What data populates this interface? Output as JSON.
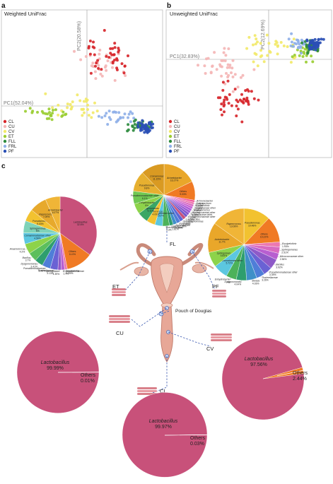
{
  "panels": {
    "a": {
      "letter": "a",
      "title": "Weighted UniFrac",
      "pc1": "PC1(52.04%)",
      "pc2": "PC2(20.58%)"
    },
    "b": {
      "letter": "b",
      "title": "Unweighted UniFrac",
      "pc1": "PC1(32.83%)",
      "pc2": "PC2(12.69%)"
    },
    "c": {
      "letter": "c"
    }
  },
  "legend": [
    {
      "label": "CL",
      "color": "#d7262b"
    },
    {
      "label": "CU",
      "color": "#f4b6b6"
    },
    {
      "label": "CV",
      "color": "#f2e96a"
    },
    {
      "label": "ET",
      "color": "#9acd32"
    },
    {
      "label": "FLL",
      "color": "#2e8b3e"
    },
    {
      "label": "FRL",
      "color": "#8fb0e8"
    },
    {
      "label": "PF",
      "color": "#2a4fb5"
    }
  ],
  "sites": {
    "et": "ET",
    "fl": "FL",
    "pf": "PF",
    "cu": "CU",
    "cv": "CV",
    "cl": "CL",
    "pouch": "Pouch of Douglas"
  },
  "chart_data": [
    {
      "id": "pcoa_weighted",
      "type": "scatter",
      "title": "Weighted UniFrac",
      "xlabel": "PC1(52.04%)",
      "ylabel": "PC2(20.58%)",
      "series_note": "groups CL, CU, CV, ET, FLL, FRL, PF"
    },
    {
      "id": "pcoa_unweighted",
      "type": "scatter",
      "title": "Unweighted UniFrac",
      "xlabel": "PC1(32.83%)",
      "ylabel": "PC2(12.69%)",
      "series_note": "groups CL, CU, CV, ET, FLL, FRL, PF"
    },
    {
      "id": "pie_et",
      "type": "pie",
      "site": "ET",
      "slices": [
        {
          "label": "Lactobacillus",
          "pct_text": "32.6%",
          "value": 32.6,
          "color": "#c8517a"
        },
        {
          "label": "Others",
          "pct_text": "11.0%",
          "value": 11.0,
          "color": "#f07a24"
        },
        {
          "label": "Erysipelotrix",
          "pct_text": "1.09%",
          "value": 1.09,
          "color": "#ec78b0"
        },
        {
          "label": "Erysipelotrichaceae",
          "pct_text": "1.4%",
          "value": 1.4,
          "color": "#b85fd0"
        },
        {
          "label": "Sphingobium",
          "pct_text": "1.39%",
          "value": 1.39,
          "color": "#8e5ac8"
        },
        {
          "label": "Tissierellaceae",
          "pct_text": "3.13%",
          "value": 3.13,
          "color": "#6a62d4"
        },
        {
          "label": "Pseudomonadaceae",
          "pct_text": "3.46%",
          "value": 3.46,
          "color": "#4f7ed8"
        },
        {
          "label": "Dysgonomonas",
          "pct_text": "3.41%",
          "value": 3.41,
          "color": "#2e9e6e"
        },
        {
          "label": "Bacillus",
          "pct_text": "3.7%",
          "value": 3.7,
          "color": "#5cbf5c"
        },
        {
          "label": "Anaerococcus",
          "pct_text": "4.2%",
          "value": 4.2,
          "color": "#8dd34a"
        },
        {
          "label": "Comamonadaceae other",
          "pct_text": "4.56%",
          "value": 4.56,
          "color": "#5cc7e0"
        },
        {
          "label": "Sphingomonas",
          "pct_text": "5%",
          "value": 5.0,
          "color": "#7fd3b8"
        },
        {
          "label": "Pseudomonas",
          "pct_text": "5.03%",
          "value": 5.03,
          "color": "#f2c230"
        },
        {
          "label": "Rapnococcus",
          "pct_text": "7.09%",
          "value": 7.09,
          "color": "#e7a92c"
        },
        {
          "label": "Acinetobacter",
          "pct_text": "6.07%",
          "value": 6.07,
          "color": "#f0b537"
        }
      ]
    },
    {
      "id": "pie_fl",
      "type": "pie",
      "site": "FL",
      "slices": [
        {
          "label": "Acinetobacter",
          "pct_text": "16.27%",
          "value": 16.27,
          "color": "#e9a72a"
        },
        {
          "label": "Others",
          "pct_text": "9.03%",
          "value": 9.03,
          "color": "#f07a24"
        },
        {
          "label": "Achromobacter",
          "pct_text": "1.01%",
          "value": 1.01,
          "color": "#f2559a"
        },
        {
          "label": "Ochrobactrum",
          "pct_text": "1.07%",
          "value": 1.07,
          "color": "#ec78b0"
        },
        {
          "label": "Erysipelothrix",
          "pct_text": "1.08%",
          "value": 1.08,
          "color": "#d96ac0"
        },
        {
          "label": "Clostridiaceae other",
          "pct_text": "1.08%",
          "value": 1.08,
          "color": "#c761d2"
        },
        {
          "label": "Staphylococcus",
          "pct_text": "1.17%",
          "value": 1.17,
          "color": "#b05bd8"
        },
        {
          "label": "Micrococcaceae other",
          "pct_text": "1.18%",
          "value": 1.18,
          "color": "#9b59d4"
        },
        {
          "label": "Tissierellaceae other",
          "pct_text": "1.2%",
          "value": 1.2,
          "color": "#8657d0"
        },
        {
          "label": "Erysipelotrichaceae other",
          "pct_text": "1.3%",
          "value": 1.3,
          "color": "#7159cc"
        },
        {
          "label": "Lactobacillus",
          "pct_text": "1.53%",
          "value": 1.53,
          "color": "#c8517a"
        },
        {
          "label": "Stenotrophomonas",
          "pct_text": "1.74%",
          "value": 1.74,
          "color": "#5a68d4"
        },
        {
          "label": "Facklamia",
          "pct_text": "1.78%",
          "value": 1.78,
          "color": "#4f7ed8"
        },
        {
          "label": "Sphingobium",
          "pct_text": "1.81%",
          "value": 1.81,
          "color": "#3f90c8"
        },
        {
          "label": "Dietzia",
          "pct_text": "1.81%",
          "value": 1.81,
          "color": "#2e9e6e"
        },
        {
          "label": "Brevundimonas",
          "pct_text": "3.3%",
          "value": 3.3,
          "color": "#4cb25a"
        },
        {
          "label": "Comamonadaceae other",
          "pct_text": "3.67%",
          "value": 3.67,
          "color": "#5cc7e0"
        },
        {
          "label": "Rapnococcus",
          "pct_text": "4.09%",
          "value": 4.09,
          "color": "#f2c230"
        },
        {
          "label": "Dysgonomonas",
          "pct_text": "5.11%",
          "value": 5.11,
          "color": "#3aa664"
        },
        {
          "label": "Enhydrobacter",
          "pct_text": "5%",
          "value": 5.0,
          "color": "#8dd34a"
        },
        {
          "label": "Pseudomonadaceae other",
          "pct_text": "6.1%",
          "value": 6.1,
          "color": "#70c852"
        },
        {
          "label": "Pseudomonas",
          "pct_text": "9.8%",
          "value": 9.8,
          "color": "#e7b030"
        },
        {
          "label": "Comamonas",
          "pct_text": "11.15%",
          "value": 11.15,
          "color": "#d99a22"
        }
      ]
    },
    {
      "id": "pie_pf",
      "type": "pie",
      "site": "PF",
      "slices": [
        {
          "label": "Pseudomonas",
          "pct_text": "10.48%",
          "value": 10.48,
          "color": "#f2c230"
        },
        {
          "label": "Others",
          "pct_text": "10.22%",
          "value": 10.22,
          "color": "#f07a24"
        },
        {
          "label": "Erysipelothrix",
          "pct_text": "1.93%",
          "value": 1.93,
          "color": "#ec78b0"
        },
        {
          "label": "Sphingomonas",
          "pct_text": "2.51%",
          "value": 2.51,
          "color": "#d96ac0"
        },
        {
          "label": "Micrococcaceae other",
          "pct_text": "2.56%",
          "value": 2.56,
          "color": "#b85fd0"
        },
        {
          "label": "Bacillus",
          "pct_text": "3.92%",
          "value": 3.92,
          "color": "#8e5ac8"
        },
        {
          "label": "Pseudomonadaceae other",
          "pct_text": "3.39%",
          "value": 3.39,
          "color": "#6a62d4"
        },
        {
          "label": "Tissierellaceae",
          "pct_text": "3.26%",
          "value": 3.26,
          "color": "#4f7ed8"
        },
        {
          "label": "Dietzia",
          "pct_text": "4.03%",
          "value": 4.03,
          "color": "#3f90c8"
        },
        {
          "label": "Dysgonomonas",
          "pct_text": "4.04%",
          "value": 4.04,
          "color": "#2e9e6e"
        },
        {
          "label": "Enhydrobacter",
          "pct_text": "4%",
          "value": 4.0,
          "color": "#4cb25a"
        },
        {
          "label": "Comamonadaceae other",
          "pct_text": "5.72%",
          "value": 5.72,
          "color": "#5cc7e0"
        },
        {
          "label": "Sphingobium",
          "pct_text": "5.83%",
          "value": 5.83,
          "color": "#8dd34a"
        },
        {
          "label": "Acinetobacter",
          "pct_text": "11.7%",
          "value": 11.7,
          "color": "#e9a72a"
        },
        {
          "label": "Rapnococcus",
          "pct_text": "13.08%",
          "value": 13.08,
          "color": "#f0b537"
        }
      ]
    },
    {
      "id": "pie_cu",
      "type": "pie",
      "site": "CU",
      "slices": [
        {
          "label": "Lactobacillus",
          "pct_text": "99.99%",
          "value": 99.99,
          "color": "#c8517a"
        },
        {
          "label": "Others",
          "pct_text": "0.01%",
          "value": 0.01,
          "color": "#f07a24"
        }
      ]
    },
    {
      "id": "pie_cv",
      "type": "pie",
      "site": "CV",
      "slices": [
        {
          "label": "Lactobacillus",
          "pct_text": "97.56%",
          "value": 97.56,
          "color": "#c8517a"
        },
        {
          "label": "Others",
          "pct_text": "2.44%",
          "value": 2.44,
          "color": "#f07a24"
        }
      ]
    },
    {
      "id": "pie_cl",
      "type": "pie",
      "site": "CL",
      "slices": [
        {
          "label": "Lactobacillus",
          "pct_text": "99.97%",
          "value": 99.97,
          "color": "#c8517a"
        },
        {
          "label": "Others",
          "pct_text": "0.03%",
          "value": 0.03,
          "color": "#f07a24"
        }
      ]
    }
  ]
}
